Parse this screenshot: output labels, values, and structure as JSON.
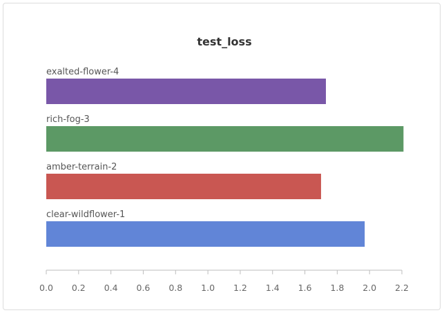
{
  "chart_data": {
    "type": "bar",
    "orientation": "horizontal",
    "title": "test_loss",
    "xlabel": "",
    "ylabel": "",
    "xlim": [
      0,
      2.2
    ],
    "grid": false,
    "legend": "none",
    "x_ticks": [
      "0.0",
      "0.2",
      "0.4",
      "0.6",
      "0.8",
      "1.0",
      "1.2",
      "1.4",
      "1.6",
      "1.8",
      "2.0",
      "2.2"
    ],
    "categories": [
      "exalted-flower-4",
      "rich-fog-3",
      "amber-terrain-2",
      "clear-wildflower-1"
    ],
    "values": [
      1.73,
      2.21,
      1.7,
      1.97
    ],
    "colors": [
      "#7957a8",
      "#5c9965",
      "#c95752",
      "#6185d7"
    ]
  }
}
